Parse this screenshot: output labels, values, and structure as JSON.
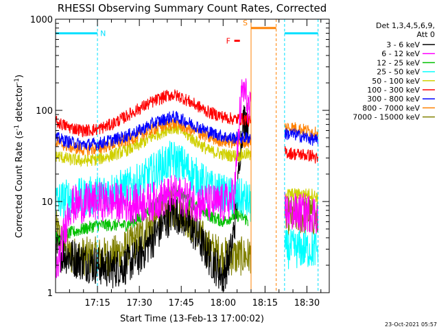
{
  "chart_data": {
    "type": "line",
    "title": "RHESSI Observing Summary Count Rates, Corrected",
    "xlabel": "Start Time (13-Feb-13 17:00:02)",
    "ylabel_main": "Corrected Count Rate (s",
    "ylabel_sup1": "-1",
    "ylabel_mid": " detector",
    "ylabel_sup2": "-1",
    "ylabel_end": ")",
    "y_scale": "log",
    "ylim": [
      1,
      1000
    ],
    "xlim_minutes": [
      0,
      98
    ],
    "x_ticks": [
      {
        "label": "17:15",
        "minutes": 15
      },
      {
        "label": "17:30",
        "minutes": 30
      },
      {
        "label": "17:45",
        "minutes": 45
      },
      {
        "label": "18:00",
        "minutes": 60
      },
      {
        "label": "18:15",
        "minutes": 75
      },
      {
        "label": "18:30",
        "minutes": 90
      }
    ],
    "y_ticks": [
      {
        "label": "1",
        "value": 1
      },
      {
        "label": "10",
        "value": 10
      },
      {
        "label": "100",
        "value": 100
      },
      {
        "label": "1000",
        "value": 1000
      }
    ],
    "legend": {
      "header_line1": "Det 1,3,4,5,6,9,",
      "header_line2": "Att 0",
      "placement": "right"
    },
    "data_gaps_minutes": [
      [
        70,
        82
      ],
      [
        94,
        98
      ]
    ],
    "series": [
      {
        "name": "3 - 6 keV",
        "color": "#000000",
        "x": [
          0,
          5,
          10,
          15,
          20,
          25,
          30,
          35,
          40,
          42,
          45,
          50,
          55,
          60,
          63,
          65,
          66,
          67,
          68,
          69,
          82,
          83,
          84,
          86,
          88,
          90,
          92,
          94
        ],
        "y": [
          3,
          2.5,
          2.2,
          2,
          1.8,
          2,
          2.5,
          4,
          6.5,
          7.5,
          7,
          4.5,
          2.5,
          1.5,
          3,
          10,
          35,
          70,
          85,
          75,
          null,
          null,
          null,
          null,
          null,
          null,
          null,
          null
        ]
      },
      {
        "name": "6 - 12 keV",
        "color": "#ff00ff",
        "x": [
          0,
          5,
          10,
          15,
          20,
          25,
          30,
          35,
          40,
          42,
          45,
          50,
          55,
          60,
          62,
          64,
          65,
          66,
          67,
          68,
          69,
          82,
          84,
          86,
          88,
          90,
          92,
          94
        ],
        "y": [
          1.5,
          9,
          9.5,
          10,
          10,
          9.5,
          9.5,
          10,
          11.5,
          12,
          11.5,
          10,
          9.5,
          9.5,
          10,
          12,
          30,
          90,
          170,
          150,
          110,
          8,
          7.5,
          7.5,
          7.5,
          7.5,
          7.5,
          7
        ]
      },
      {
        "name": "12 - 25 keV",
        "color": "#00c000",
        "x": [
          0,
          5,
          10,
          15,
          20,
          25,
          30,
          35,
          40,
          42,
          45,
          50,
          55,
          60,
          62,
          64,
          66,
          68,
          69
        ],
        "y": [
          4,
          4.5,
          5,
          5.5,
          5.5,
          5.5,
          6.5,
          9,
          12,
          13,
          12,
          9,
          7,
          6,
          6.5,
          7,
          7,
          6.5,
          6
        ]
      },
      {
        "name": "25 - 50 keV",
        "color": "#00ffff",
        "x": [
          0,
          5,
          10,
          15,
          20,
          25,
          30,
          35,
          40,
          42,
          45,
          50,
          55,
          60,
          62,
          64,
          66,
          68,
          69,
          82,
          84,
          86,
          88,
          90,
          92,
          94
        ],
        "y": [
          10,
          11,
          11,
          12,
          13,
          14,
          16,
          21,
          27,
          29,
          26,
          19,
          14,
          12,
          11.5,
          11,
          11,
          10.5,
          10,
          3,
          3,
          3,
          3,
          3,
          3,
          3
        ]
      },
      {
        "name": "50 - 100 keV",
        "color": "#d0d000",
        "x": [
          0,
          5,
          10,
          15,
          20,
          25,
          30,
          35,
          40,
          42,
          45,
          50,
          55,
          60,
          62,
          64,
          66,
          68,
          69,
          82,
          84,
          86,
          88,
          90,
          92,
          94
        ],
        "y": [
          32,
          29,
          28,
          29,
          32,
          36,
          42,
          52,
          62,
          65,
          60,
          46,
          36,
          33,
          32,
          32,
          32,
          33,
          33,
          12,
          12,
          12,
          12,
          12,
          12,
          11
        ]
      },
      {
        "name": "100 - 300 keV",
        "color": "#ff0000",
        "x": [
          0,
          5,
          10,
          15,
          20,
          25,
          30,
          35,
          40,
          42,
          45,
          50,
          55,
          60,
          62,
          64,
          66,
          68,
          69,
          82,
          84,
          86,
          88,
          90,
          92,
          94
        ],
        "y": [
          75,
          65,
          60,
          62,
          70,
          85,
          105,
          125,
          145,
          148,
          140,
          115,
          95,
          85,
          82,
          80,
          80,
          80,
          78,
          35,
          34,
          33,
          33,
          32,
          32,
          28
        ]
      },
      {
        "name": "300 - 800 keV",
        "color": "#0000ff",
        "x": [
          0,
          5,
          10,
          15,
          20,
          25,
          30,
          35,
          40,
          42,
          45,
          50,
          55,
          60,
          62,
          64,
          66,
          68,
          69,
          82,
          84,
          86,
          88,
          90,
          92,
          94
        ],
        "y": [
          50,
          45,
          42,
          43,
          47,
          52,
          60,
          72,
          82,
          85,
          80,
          68,
          58,
          52,
          50,
          50,
          50,
          50,
          50,
          55,
          55,
          54,
          52,
          50,
          48,
          46
        ]
      },
      {
        "name": "800 - 7000 keV",
        "color": "#ff8000",
        "x": [
          0,
          5,
          10,
          15,
          20,
          25,
          30,
          35,
          40,
          42,
          45,
          50,
          55,
          60,
          62,
          64,
          66,
          68,
          69,
          82,
          84,
          86,
          88,
          90,
          92,
          94
        ],
        "y": [
          45,
          40,
          37,
          38,
          42,
          46,
          53,
          62,
          70,
          72,
          68,
          58,
          50,
          46,
          45,
          45,
          45,
          45,
          45,
          65,
          65,
          64,
          62,
          60,
          58,
          55
        ]
      },
      {
        "name": "7000 - 15000 keV",
        "color": "#808000",
        "x": [
          0,
          5,
          10,
          15,
          20,
          25,
          30,
          35,
          40,
          42,
          45,
          50,
          55,
          60,
          62,
          64,
          66,
          68,
          69,
          82,
          84,
          86,
          88,
          90,
          92,
          94
        ],
        "y": [
          5,
          2.5,
          2.5,
          2.5,
          2.5,
          3,
          4,
          6,
          8,
          8.5,
          8,
          5,
          3,
          2.5,
          2.5,
          2.5,
          2.5,
          2.5,
          2.5,
          7,
          7,
          7,
          7,
          7,
          7,
          6
        ]
      }
    ],
    "annotations": [
      {
        "label": "N",
        "color": "#00e0ff",
        "bar_minutes": [
          0,
          15
        ],
        "bar_value": 700,
        "start_minutes": 15,
        "end_minutes": null
      },
      {
        "label": "S",
        "color": "#ff8000",
        "bar_minutes": [
          70,
          79
        ],
        "bar_value": 800,
        "start_minutes": 70,
        "end_minutes": 79
      },
      {
        "label": "F",
        "color": "#ff0000",
        "bar_minutes": [
          64,
          66
        ],
        "bar_value": 580,
        "start_minutes": null,
        "end_minutes": null
      },
      {
        "label": "",
        "color": "#00e0ff",
        "bar_minutes": [
          82,
          94
        ],
        "bar_value": 700,
        "start_minutes": 82,
        "end_minutes": 94
      }
    ]
  },
  "footer": {
    "timestamp": "23-Oct-2021 05:57"
  }
}
